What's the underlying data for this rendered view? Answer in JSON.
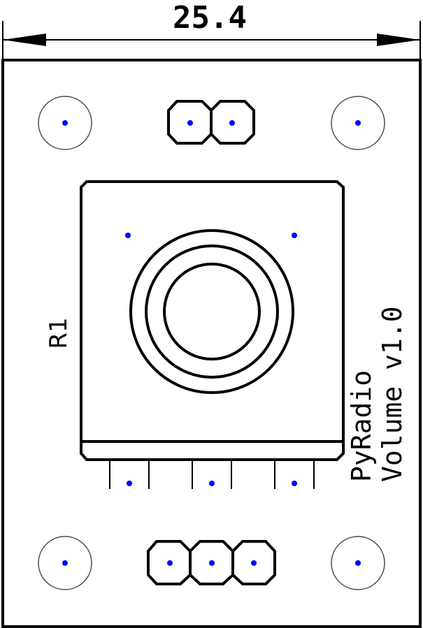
{
  "dimension": {
    "label": "25.4"
  },
  "reference": {
    "designator": "R1"
  },
  "label": {
    "line1": "PyRadio",
    "line2": "Volume v1.0"
  },
  "colors": {
    "line": "#000000",
    "pin": "#0000ff",
    "hole": "#4a4a4a",
    "background": "#ffffff"
  }
}
